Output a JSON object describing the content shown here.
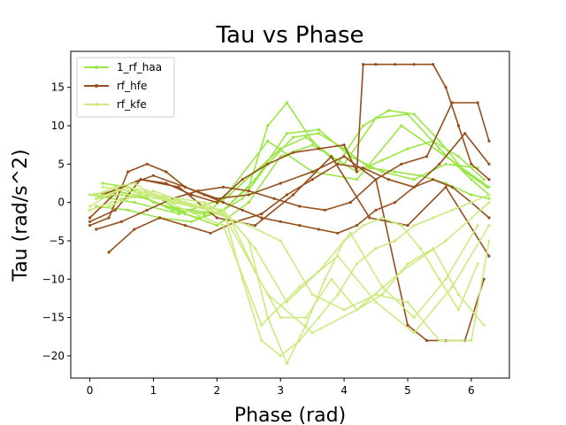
{
  "chart_data": {
    "type": "line",
    "title": "Tau vs Phase",
    "xlabel": "Phase (rad)",
    "ylabel": "Tau (rad/s^2)",
    "xlim": [
      -0.3,
      6.6
    ],
    "ylim": [
      -22.9,
      19.7
    ],
    "xticks": [
      0,
      1,
      2,
      3,
      4,
      5,
      6
    ],
    "yticks": [
      -20,
      -15,
      -10,
      -5,
      0,
      5,
      10,
      15
    ],
    "legend": {
      "position": "top-left",
      "entries": [
        "1_rf_haa",
        "rf_hfe",
        "rf_kfe"
      ]
    },
    "grid": false,
    "series": [
      {
        "name": "1_rf_haa",
        "color": "#99e644",
        "traces": [
          {
            "x": [
              0.0,
              0.4,
              0.8,
              1.2,
              1.6,
              2.0,
              2.4,
              2.8,
              3.2,
              3.6,
              4.0,
              4.4,
              4.8,
              5.2,
              5.6,
              6.0,
              6.28
            ],
            "y": [
              1.0,
              1.5,
              0.8,
              -0.5,
              -1.0,
              -1.5,
              0.5,
              5.0,
              8.5,
              9.0,
              7.0,
              4.5,
              4.0,
              3.5,
              2.5,
              1.0,
              0.5
            ]
          },
          {
            "x": [
              0.1,
              0.5,
              0.9,
              1.3,
              1.7,
              2.1,
              2.5,
              2.8,
              3.1,
              3.5,
              3.9,
              4.3,
              4.7,
              5.1,
              5.5,
              5.9,
              6.25
            ],
            "y": [
              0.5,
              1.0,
              0.5,
              -1.0,
              -2.0,
              -1.0,
              2.0,
              10.0,
              13.0,
              8.0,
              5.0,
              10.0,
              12.0,
              11.5,
              8.0,
              4.0,
              2.0
            ]
          },
          {
            "x": [
              0.0,
              0.5,
              1.0,
              1.5,
              2.0,
              2.5,
              3.0,
              3.5,
              4.0,
              4.5,
              5.0,
              5.5,
              6.0,
              6.28
            ],
            "y": [
              -1.0,
              0.5,
              1.0,
              -1.5,
              -3.0,
              0.0,
              6.0,
              7.5,
              5.0,
              11.0,
              11.5,
              7.0,
              3.0,
              1.0
            ]
          },
          {
            "x": [
              0.2,
              0.6,
              1.0,
              1.4,
              1.8,
              2.2,
              2.6,
              3.0,
              3.4,
              3.8,
              4.2,
              4.6,
              5.0,
              5.4,
              5.8,
              6.2
            ],
            "y": [
              2.5,
              2.0,
              0.0,
              -1.0,
              -1.5,
              1.0,
              4.0,
              7.0,
              8.5,
              6.0,
              4.0,
              5.5,
              7.0,
              8.0,
              6.0,
              3.0
            ]
          },
          {
            "x": [
              0.1,
              0.6,
              1.1,
              1.6,
              2.1,
              2.6,
              3.1,
              3.6,
              4.1,
              4.6,
              5.1,
              5.6,
              6.1
            ],
            "y": [
              -0.5,
              -1.0,
              -2.0,
              -2.5,
              -1.0,
              3.0,
              9.0,
              9.5,
              6.0,
              4.0,
              3.0,
              5.0,
              4.5
            ]
          },
          {
            "x": [
              0.0,
              0.7,
              1.4,
              2.1,
              2.8,
              3.5,
              4.2,
              4.9,
              5.6,
              6.28
            ],
            "y": [
              1.0,
              0.0,
              -1.5,
              0.5,
              8.0,
              4.0,
              3.0,
              10.0,
              6.0,
              2.0
            ]
          }
        ]
      },
      {
        "name": "rf_hfe",
        "color": "#964f1c",
        "traces": [
          {
            "x": [
              0.0,
              0.3,
              0.6,
              0.9,
              1.2,
              1.5,
              1.8,
              2.1,
              2.4,
              2.7,
              3.0,
              3.3,
              3.6,
              3.9,
              4.2,
              4.5,
              4.8,
              5.1,
              5.4,
              5.7,
              6.0,
              6.28
            ],
            "y": [
              -3.0,
              -2.0,
              4.0,
              5.0,
              4.0,
              2.0,
              1.0,
              0.0,
              -1.0,
              -2.0,
              -2.5,
              -3.0,
              -3.5,
              -4.0,
              -3.0,
              -1.0,
              0.0,
              2.0,
              3.0,
              2.0,
              0.0,
              -2.0
            ]
          },
          {
            "x": [
              0.0,
              0.4,
              0.8,
              1.2,
              1.6,
              2.0,
              2.4,
              2.8,
              3.2,
              3.6,
              4.0,
              4.2,
              4.3,
              4.5,
              4.8,
              5.1,
              5.4,
              5.6,
              5.8,
              6.0,
              6.28
            ],
            "y": [
              -2.5,
              -1.0,
              3.0,
              2.5,
              1.0,
              0.0,
              3.0,
              5.0,
              6.5,
              7.0,
              7.5,
              4.0,
              18.0,
              18.0,
              18.0,
              18.0,
              18.0,
              15.0,
              10.0,
              5.0,
              3.0
            ]
          },
          {
            "x": [
              0.1,
              0.5,
              0.9,
              1.3,
              1.7,
              2.1,
              2.5,
              2.9,
              3.3,
              3.7,
              4.1,
              4.5,
              4.9,
              5.3,
              5.7,
              6.1,
              6.28
            ],
            "y": [
              -3.5,
              -2.5,
              -1.0,
              0.5,
              1.5,
              2.0,
              1.5,
              0.5,
              -0.5,
              -1.0,
              0.0,
              3.0,
              5.0,
              6.0,
              13.0,
              13.0,
              8.0
            ]
          },
          {
            "x": [
              0.3,
              0.7,
              1.1,
              1.5,
              1.9,
              2.3,
              2.7,
              3.1,
              3.5,
              3.9,
              4.3,
              4.7,
              5.1,
              5.5,
              5.9,
              6.28
            ],
            "y": [
              -6.5,
              -3.5,
              -2.0,
              -3.0,
              -4.0,
              -2.5,
              -1.5,
              1.0,
              3.0,
              5.0,
              4.5,
              3.0,
              2.0,
              5.0,
              9.0,
              5.0
            ]
          },
          {
            "x": [
              0.0,
              0.5,
              1.0,
              1.5,
              2.0,
              2.5,
              3.0,
              3.5,
              4.0,
              4.5,
              5.0,
              5.3,
              5.6,
              5.9,
              6.2
            ],
            "y": [
              -2.0,
              2.0,
              3.5,
              2.0,
              0.5,
              1.0,
              2.5,
              4.0,
              6.0,
              3.0,
              -16.0,
              -18.0,
              -18.0,
              -18.0,
              -10.0
            ]
          },
          {
            "x": [
              0.2,
              0.8,
              1.4,
              2.0,
              2.6,
              3.2,
              3.8,
              4.4,
              5.0,
              5.6,
              6.28
            ],
            "y": [
              1.0,
              3.0,
              2.0,
              -2.0,
              -3.0,
              1.0,
              6.0,
              -2.0,
              -3.0,
              2.0,
              -7.0
            ]
          }
        ]
      },
      {
        "name": "rf_kfe",
        "color": "#cceb7f",
        "traces": [
          {
            "x": [
              0.0,
              0.3,
              0.6,
              0.9,
              1.2,
              1.5,
              1.8,
              2.1,
              2.4,
              2.7,
              3.0,
              3.3,
              3.6,
              3.9,
              4.2,
              4.5,
              4.8,
              5.1,
              5.4,
              5.7,
              6.0,
              6.28
            ],
            "y": [
              -0.5,
              1.0,
              2.0,
              1.5,
              0.5,
              0.0,
              -0.5,
              -1.0,
              -10.0,
              -18.0,
              -20.0,
              -18.0,
              -15.0,
              -12.0,
              -8.0,
              -6.0,
              -5.0,
              -3.0,
              -2.0,
              -1.0,
              0.0,
              1.0
            ]
          },
          {
            "x": [
              0.1,
              0.4,
              0.7,
              1.0,
              1.3,
              1.6,
              1.9,
              2.2,
              2.5,
              2.8,
              3.1,
              3.4,
              3.7,
              4.0,
              4.3,
              4.6,
              4.9,
              5.2,
              5.5,
              5.8,
              6.1
            ],
            "y": [
              1.0,
              2.0,
              2.5,
              1.0,
              0.0,
              -0.5,
              -1.0,
              -2.0,
              -5.0,
              -15.0,
              -21.0,
              -16.0,
              -10.0,
              -5.0,
              -3.0,
              -2.0,
              -3.0,
              -6.0,
              -10.0,
              -14.0,
              -8.0
            ]
          },
          {
            "x": [
              0.0,
              0.5,
              1.0,
              1.5,
              2.0,
              2.5,
              3.0,
              3.5,
              4.0,
              4.5,
              5.0,
              5.5,
              6.0,
              6.28
            ],
            "y": [
              -1.0,
              0.5,
              1.5,
              0.0,
              -1.5,
              -3.0,
              -5.0,
              -12.0,
              -14.0,
              -12.0,
              -13.0,
              -18.0,
              -18.0,
              -5.0
            ]
          },
          {
            "x": [
              0.2,
              0.6,
              1.0,
              1.4,
              1.8,
              2.2,
              2.6,
              3.0,
              3.4,
              3.8,
              4.2,
              4.6,
              5.0,
              5.4,
              5.8,
              6.2
            ],
            "y": [
              2.0,
              1.5,
              1.0,
              0.5,
              0.0,
              -2.0,
              -9.0,
              -15.0,
              -15.0,
              -10.0,
              -14.0,
              -12.0,
              -8.0,
              -6.0,
              -12.0,
              -16.0
            ]
          },
          {
            "x": [
              0.1,
              0.6,
              1.1,
              1.6,
              2.1,
              2.6,
              3.1,
              3.6,
              4.1,
              4.6,
              5.1,
              5.6,
              6.1
            ],
            "y": [
              0.5,
              2.0,
              0.5,
              -0.5,
              -1.0,
              -6.0,
              -13.0,
              -9.0,
              -4.0,
              -11.0,
              -15.0,
              -10.0,
              -3.0
            ]
          },
          {
            "x": [
              0.0,
              0.7,
              1.4,
              2.1,
              2.8,
              3.5,
              4.2,
              4.9,
              5.6,
              6.28
            ],
            "y": [
              1.0,
              1.0,
              0.0,
              -1.5,
              -12.0,
              -17.0,
              -14.0,
              -9.0,
              -5.0,
              0.0
            ]
          },
          {
            "x": [
              0.3,
              0.9,
              1.5,
              2.1,
              2.7,
              3.3,
              3.9,
              4.5,
              5.1,
              5.7,
              6.28
            ],
            "y": [
              -0.5,
              1.5,
              -1.0,
              -3.0,
              -16.0,
              -11.0,
              -7.0,
              -13.0,
              -17.0,
              -11.0,
              -3.0
            ]
          }
        ]
      }
    ]
  }
}
